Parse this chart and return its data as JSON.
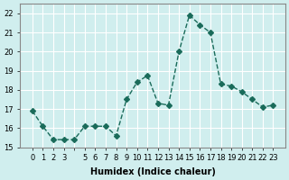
{
  "x": [
    0,
    1,
    2,
    3,
    4,
    5,
    6,
    7,
    8,
    9,
    10,
    11,
    12,
    13,
    14,
    15,
    16,
    17,
    18,
    19,
    20,
    21,
    22,
    23
  ],
  "y": [
    16.9,
    16.1,
    15.4,
    15.4,
    15.4,
    16.1,
    16.1,
    16.1,
    15.6,
    17.5,
    18.4,
    18.75,
    17.3,
    17.2,
    20.0,
    21.9,
    21.4,
    21.0,
    18.3,
    18.2,
    17.9,
    17.5,
    17.1,
    17.2
  ],
  "line_color": "#1a6b5a",
  "marker": "D",
  "marker_size": 3,
  "bg_color": "#d0eeee",
  "grid_color": "#ffffff",
  "xlabel": "Humidex (Indice chaleur)",
  "ylim": [
    15,
    22.5
  ],
  "yticks": [
    15,
    16,
    17,
    18,
    19,
    20,
    21,
    22
  ],
  "xtick_labels": [
    "0",
    "1",
    "2",
    "3",
    "",
    "5",
    "6",
    "7",
    "8",
    "9",
    "10",
    "11",
    "12",
    "13",
    "14",
    "15",
    "16",
    "17",
    "18",
    "19",
    "20",
    "21",
    "22",
    "23"
  ],
  "axis_fontsize": 7,
  "tick_fontsize": 6
}
